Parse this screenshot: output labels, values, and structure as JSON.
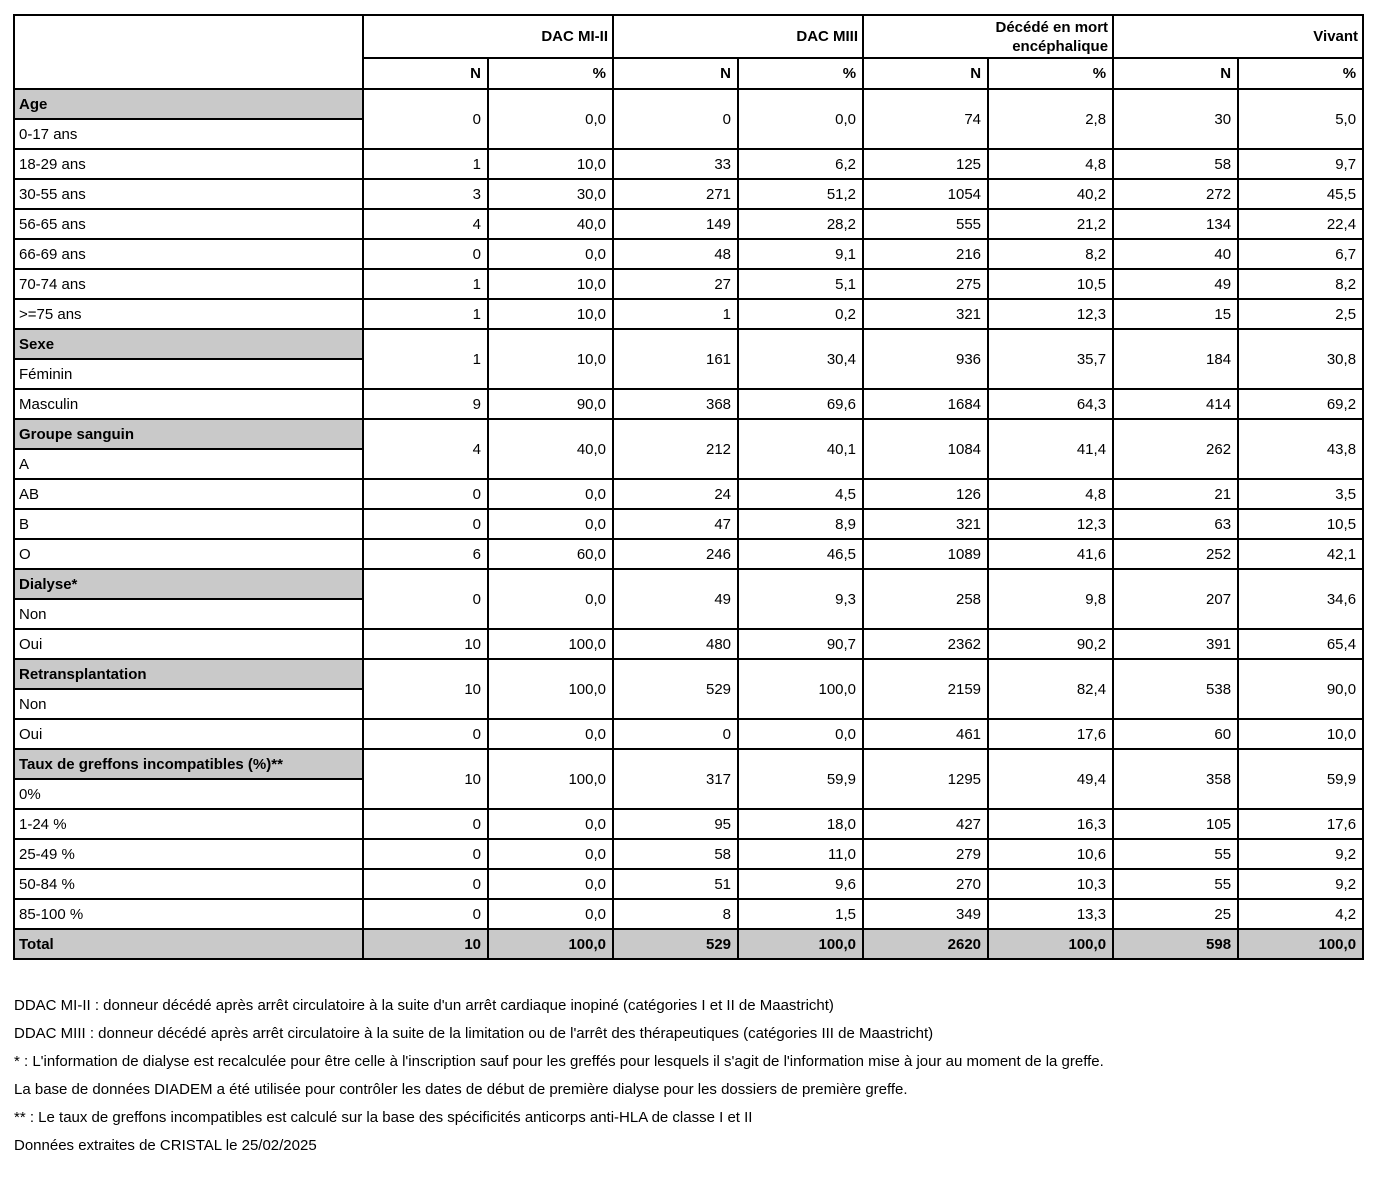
{
  "table": {
    "column_groups": [
      {
        "label": "DAC MI-II"
      },
      {
        "label": "DAC MIII"
      },
      {
        "label": "Décédé en mort\nencéphalique"
      },
      {
        "label": "Vivant"
      }
    ],
    "sub_headers": [
      "N",
      "%"
    ],
    "sections": [
      {
        "title": "Age",
        "rows": [
          {
            "label": "0-17 ans",
            "values": [
              "0",
              "0,0",
              "0",
              "0,0",
              "74",
              "2,8",
              "30",
              "5,0"
            ]
          },
          {
            "label": "18-29 ans",
            "values": [
              "1",
              "10,0",
              "33",
              "6,2",
              "125",
              "4,8",
              "58",
              "9,7"
            ]
          },
          {
            "label": "30-55 ans",
            "values": [
              "3",
              "30,0",
              "271",
              "51,2",
              "1054",
              "40,2",
              "272",
              "45,5"
            ]
          },
          {
            "label": "56-65 ans",
            "values": [
              "4",
              "40,0",
              "149",
              "28,2",
              "555",
              "21,2",
              "134",
              "22,4"
            ]
          },
          {
            "label": "66-69 ans",
            "values": [
              "0",
              "0,0",
              "48",
              "9,1",
              "216",
              "8,2",
              "40",
              "6,7"
            ]
          },
          {
            "label": "70-74 ans",
            "values": [
              "1",
              "10,0",
              "27",
              "5,1",
              "275",
              "10,5",
              "49",
              "8,2"
            ]
          },
          {
            "label": ">=75 ans",
            "values": [
              "1",
              "10,0",
              "1",
              "0,2",
              "321",
              "12,3",
              "15",
              "2,5"
            ]
          }
        ]
      },
      {
        "title": "Sexe",
        "rows": [
          {
            "label": "Féminin",
            "values": [
              "1",
              "10,0",
              "161",
              "30,4",
              "936",
              "35,7",
              "184",
              "30,8"
            ]
          },
          {
            "label": "Masculin",
            "values": [
              "9",
              "90,0",
              "368",
              "69,6",
              "1684",
              "64,3",
              "414",
              "69,2"
            ]
          }
        ]
      },
      {
        "title": "Groupe sanguin",
        "rows": [
          {
            "label": "A",
            "values": [
              "4",
              "40,0",
              "212",
              "40,1",
              "1084",
              "41,4",
              "262",
              "43,8"
            ]
          },
          {
            "label": "AB",
            "values": [
              "0",
              "0,0",
              "24",
              "4,5",
              "126",
              "4,8",
              "21",
              "3,5"
            ]
          },
          {
            "label": "B",
            "values": [
              "0",
              "0,0",
              "47",
              "8,9",
              "321",
              "12,3",
              "63",
              "10,5"
            ]
          },
          {
            "label": "O",
            "values": [
              "6",
              "60,0",
              "246",
              "46,5",
              "1089",
              "41,6",
              "252",
              "42,1"
            ]
          }
        ]
      },
      {
        "title": "Dialyse*",
        "rows": [
          {
            "label": "Non",
            "values": [
              "0",
              "0,0",
              "49",
              "9,3",
              "258",
              "9,8",
              "207",
              "34,6"
            ]
          },
          {
            "label": "Oui",
            "values": [
              "10",
              "100,0",
              "480",
              "90,7",
              "2362",
              "90,2",
              "391",
              "65,4"
            ]
          }
        ]
      },
      {
        "title": "Retransplantation",
        "rows": [
          {
            "label": "Non",
            "values": [
              "10",
              "100,0",
              "529",
              "100,0",
              "2159",
              "82,4",
              "538",
              "90,0"
            ]
          },
          {
            "label": "Oui",
            "values": [
              "0",
              "0,0",
              "0",
              "0,0",
              "461",
              "17,6",
              "60",
              "10,0"
            ]
          }
        ]
      },
      {
        "title": "Taux de greffons incompatibles (%)**",
        "rows": [
          {
            "label": "0%",
            "values": [
              "10",
              "100,0",
              "317",
              "59,9",
              "1295",
              "49,4",
              "358",
              "59,9"
            ]
          },
          {
            "label": "1-24 %",
            "values": [
              "0",
              "0,0",
              "95",
              "18,0",
              "427",
              "16,3",
              "105",
              "17,6"
            ]
          },
          {
            "label": "25-49 %",
            "values": [
              "0",
              "0,0",
              "58",
              "11,0",
              "279",
              "10,6",
              "55",
              "9,2"
            ]
          },
          {
            "label": "50-84 %",
            "values": [
              "0",
              "0,0",
              "51",
              "9,6",
              "270",
              "10,3",
              "55",
              "9,2"
            ]
          },
          {
            "label": "85-100 %",
            "values": [
              "0",
              "0,0",
              "8",
              "1,5",
              "349",
              "13,3",
              "25",
              "4,2"
            ]
          }
        ]
      }
    ],
    "total_row": {
      "label": "Total",
      "values": [
        "10",
        "100,0",
        "529",
        "100,0",
        "2620",
        "100,0",
        "598",
        "100,0"
      ]
    }
  },
  "footnotes": [
    "DDAC MI-II : donneur décédé après arrêt circulatoire à la suite d'un arrêt cardiaque inopiné (catégories I et II de Maastricht)",
    "DDAC MIII : donneur décédé après arrêt circulatoire à la suite de la limitation ou de l'arrêt des thérapeutiques (catégories III de Maastricht)",
    "* : L'information de dialyse est recalculée pour être celle à l'inscription sauf pour les greffés pour lesquels il s'agit de l'information mise à jour au moment de la greffe.",
    "La base de données DIADEM a été utilisée pour contrôler les dates de début de première dialyse pour les dossiers de première greffe.",
    "** : Le taux de greffons incompatibles est calculé sur la base des spécificités anticorps anti-HLA de classe I et II",
    "Données extraites de CRISTAL le 25/02/2025"
  ],
  "colors": {
    "section_gray": "#c9c9c9",
    "border": "#000000",
    "text": "#000000",
    "background": "#ffffff"
  }
}
